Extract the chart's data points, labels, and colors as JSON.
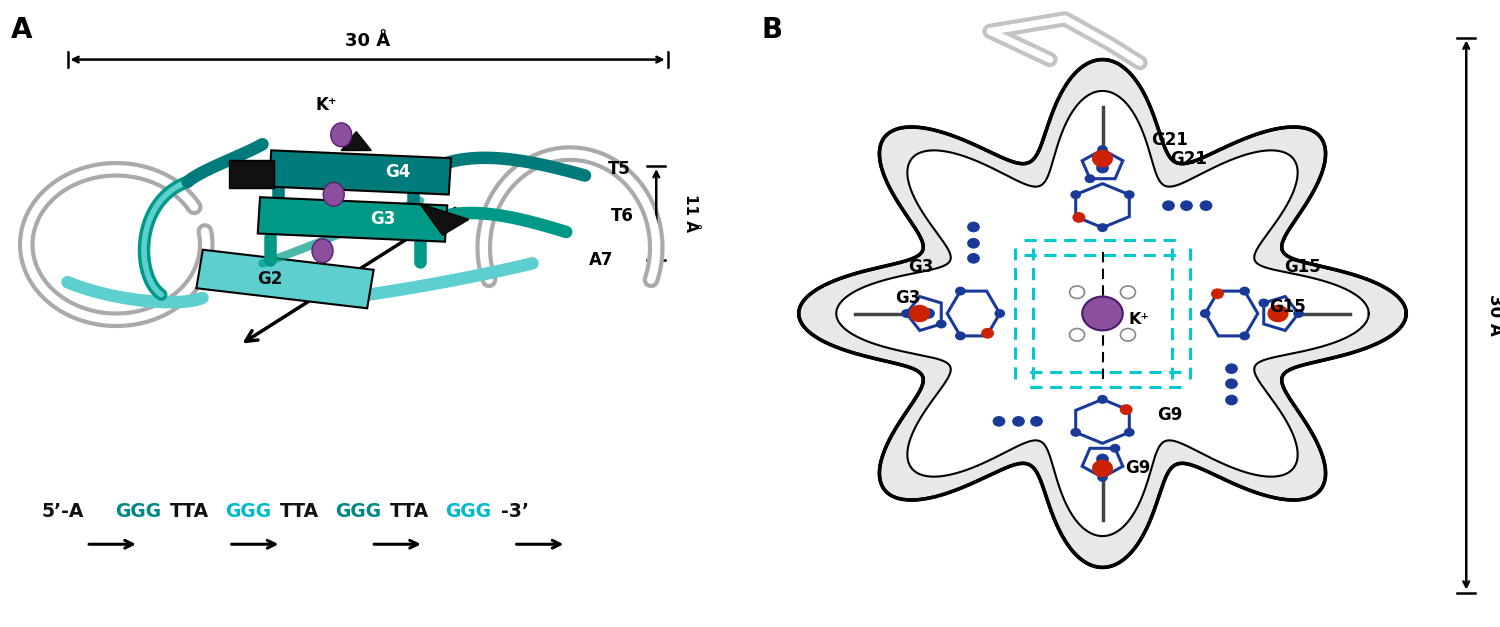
{
  "panel_A_label": "A",
  "panel_B_label": "B",
  "measurement_30A": "30 Å",
  "measurement_11A": "11 Å",
  "measurement_30A_B": "30 Å",
  "label_G2": "G2",
  "label_G3": "G3",
  "label_G4": "G4",
  "label_T5": "T5",
  "label_T6": "T6",
  "label_A7": "A7",
  "label_Kplus_A": "K⁺",
  "label_Kplus_B": "K⁺",
  "label_G3_B": "G3",
  "label_G9": "G9",
  "label_G15": "G15",
  "label_G21": "G21",
  "teal_dark": "#007b7b",
  "teal_mid": "#009988",
  "teal_light": "#5ecfcf",
  "gray_backbone": "#aaaaaa",
  "purple": "#8B4F9E",
  "blue_base": "#1a3a9a",
  "red_oxygen": "#cc2200",
  "cyan_hbond": "#00c8d0",
  "background": "#ffffff"
}
